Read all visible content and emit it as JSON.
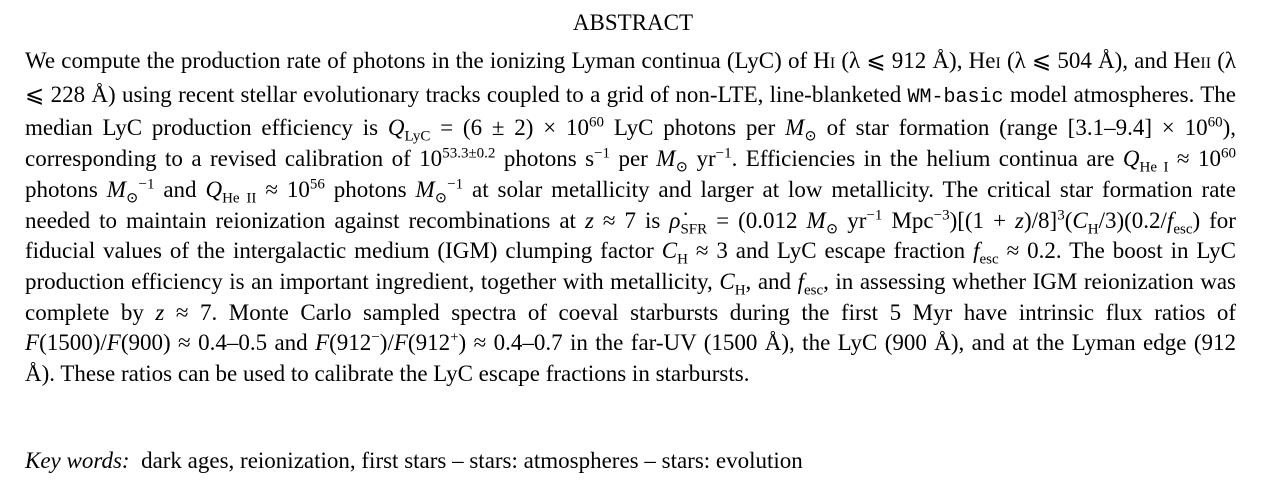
{
  "heading": "ABSTRACT",
  "abstract": {
    "s01": "We compute the production rate of photons in the ionizing Lyman continua (LyC) of H",
    "s02": "I",
    "s03": " (λ ⩽ 912 Å), He",
    "s04": "I",
    "s05": " (λ ⩽ 504 Å), and He",
    "s06": "II",
    "s07": " (λ ⩽ 228 Å) using recent stellar evolutionary tracks coupled to a grid of non-LTE, line-blanketed ",
    "s08": "WM-basic",
    "s09": " model atmospheres. The median LyC production efficiency is ",
    "s10": "Q",
    "s11": "LyC",
    "s12": " = (6 ± 2) × 10",
    "s13": "60",
    "s14": " LyC photons per ",
    "s15": "M",
    "s16": "⊙",
    "s17": " of star formation (range [3.1–9.4] × 10",
    "s18": "60",
    "s19": "), corresponding to a revised calibration of 10",
    "s20": "53.3±0.2",
    "s21": " photons s",
    "s22": "−1",
    "s23": " per ",
    "s24": "M",
    "s25": "⊙",
    "s26": " yr",
    "s27": "−1",
    "s28": ". Efficiencies in the helium continua are ",
    "s29": "Q",
    "s30": "He I",
    "s31": " ≈ 10",
    "s32": "60",
    "s33": " photons ",
    "s34": "M",
    "s35": "⊙",
    "s36": "−1",
    "s37": " and ",
    "s38": "Q",
    "s39": "He II",
    "s40": " ≈ 10",
    "s41": "56",
    "s42": " photons ",
    "s43": "M",
    "s44": "⊙",
    "s45": "−1",
    "s46": " at solar metallicity and larger at low metallicity. The critical star formation rate needed to maintain reionization against recombinations at ",
    "s47": "z",
    "s48": " ≈ 7 is ",
    "s49": "ρ̇",
    "s50": "SFR",
    "s51": " = (0.012 ",
    "s52": "M",
    "s53": "⊙",
    "s54": " yr",
    "s55": "−1",
    "s56": " Mpc",
    "s57": "−3",
    "s58": ")[(1 + ",
    "s59": "z",
    "s60": ")/8]",
    "s61": "3",
    "s62": "(",
    "s63": "C",
    "s64": "H",
    "s65": "/3)(0.2/",
    "s66": "f",
    "s67": "esc",
    "s68": ") for fiducial values of the intergalactic medium (IGM) clumping factor ",
    "s69": "C",
    "s70": "H",
    "s71": " ≈ 3 and LyC escape fraction ",
    "s72": "f",
    "s73": "esc",
    "s74": " ≈ 0.2. The boost in LyC production efficiency is an important ingredient, together with metallicity, ",
    "s75": "C",
    "s76": "H",
    "s77": ", and ",
    "s78": "f",
    "s79": "esc",
    "s80": ", in assessing whether IGM reionization was complete by ",
    "s81": "z",
    "s82": " ≈ 7. Monte Carlo sampled spectra of coeval starbursts during the first 5 Myr have intrinsic flux ratios of ",
    "s83": "F",
    "s84": "(1500)/",
    "s85": "F",
    "s86": "(900) ≈ 0.4–0.5 and ",
    "s87": "F",
    "s88": "(912",
    "s89": "−",
    "s90": ")/",
    "s91": "F",
    "s92": "(912",
    "s93": "+",
    "s94": ") ≈ 0.4–0.7 in the far-UV (1500 Å), the LyC (900 Å), and at the Lyman edge (912 Å). These ratios can be used to calibrate the LyC escape fractions in starbursts."
  },
  "keywords": {
    "label": "Key words:",
    "text": "  dark ages, reionization, first stars – stars: atmospheres – stars: evolution"
  }
}
